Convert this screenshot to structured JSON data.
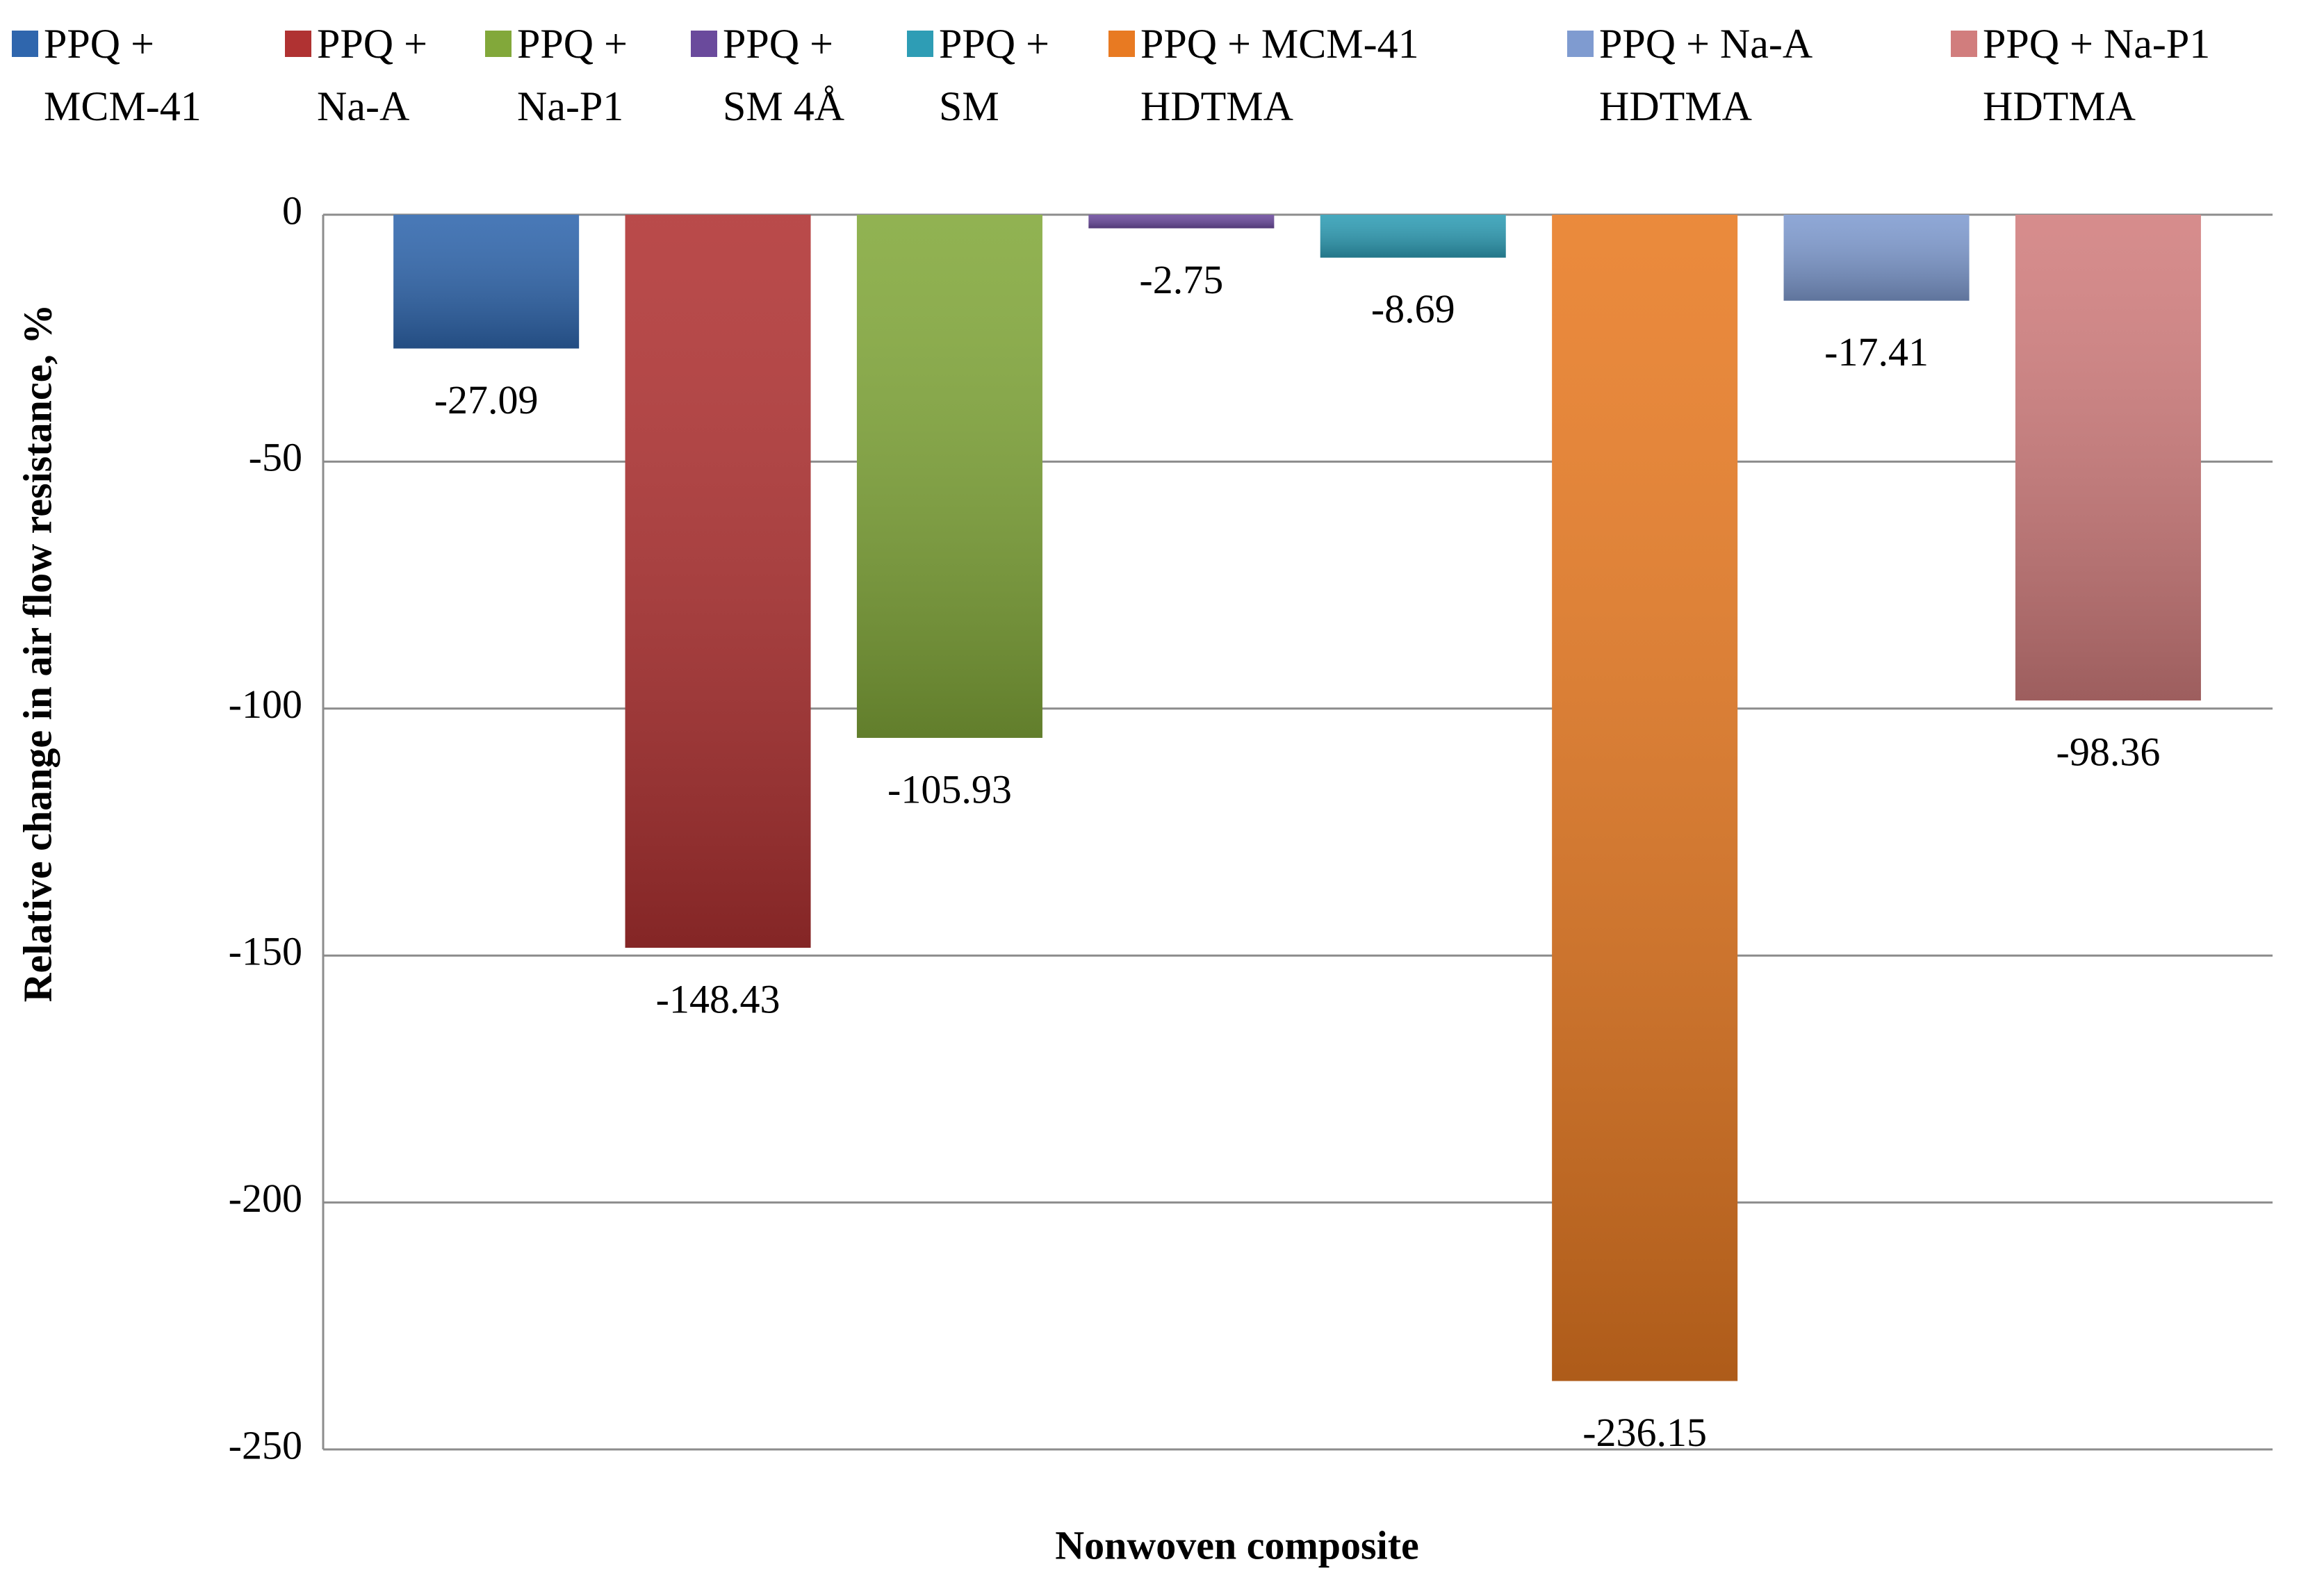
{
  "chart_data": {
    "type": "bar",
    "y_label": "Relative change in air flow resistance, %",
    "x_label": "Nonwoven composite",
    "ylim": [
      -250,
      0
    ],
    "yticks": [
      0,
      -50,
      -100,
      -150,
      -200,
      -250
    ],
    "grid": true,
    "series": [
      {
        "name": "PPQ + MCM-41",
        "color": "#2f66ad",
        "values": [
          -27.09
        ]
      },
      {
        "name": "PPQ + Na-A",
        "color": "#b03232",
        "values": [
          -148.43
        ]
      },
      {
        "name": "PPQ + Na-P1",
        "color": "#82a83a",
        "values": [
          -105.93
        ]
      },
      {
        "name": "PPQ + SM 4Å",
        "color": "#6a4a9c",
        "values": [
          -2.75
        ]
      },
      {
        "name": "PPQ + SM",
        "color": "#2e9db5",
        "values": [
          -8.69
        ]
      },
      {
        "name": "PPQ + MCM-41 HDTMA",
        "color": "#e87a22",
        "values": [
          -236.15
        ]
      },
      {
        "name": "PPQ + Na-A HDTMA",
        "color": "#7f9bd0",
        "values": [
          -17.41
        ]
      },
      {
        "name": "PPQ + Na-P1 HDTMA",
        "color": "#d17d7d",
        "values": [
          -98.36
        ]
      }
    ]
  }
}
